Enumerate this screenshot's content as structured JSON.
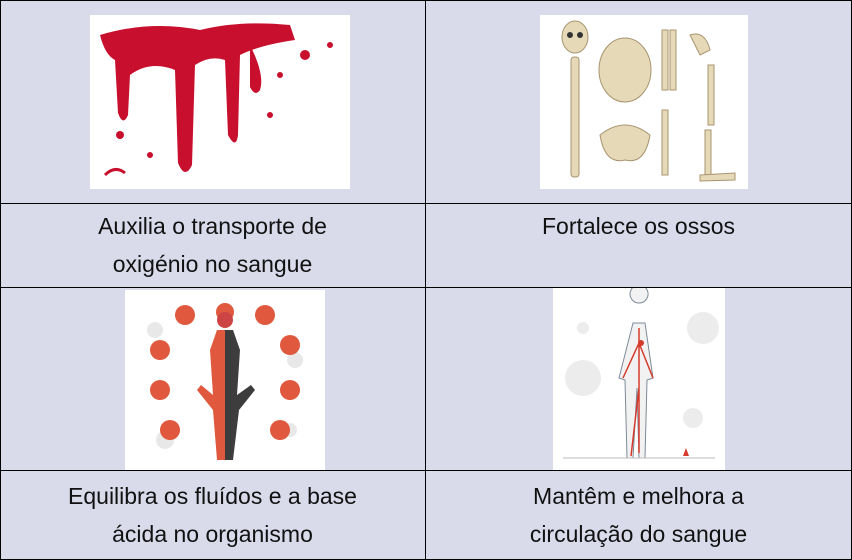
{
  "table": {
    "rows": [
      [
        {
          "caption": [
            "Auxilia o transporte de",
            "oxigénio no sangue"
          ]
        },
        {
          "caption": [
            "Fortalece os ossos"
          ]
        }
      ],
      [
        {
          "caption": [
            "Equilibra os fluídos e a base",
            "ácida no organismo"
          ]
        },
        {
          "caption": [
            "Mantêm e melhora a",
            "circulação do sangue"
          ]
        }
      ]
    ]
  }
}
